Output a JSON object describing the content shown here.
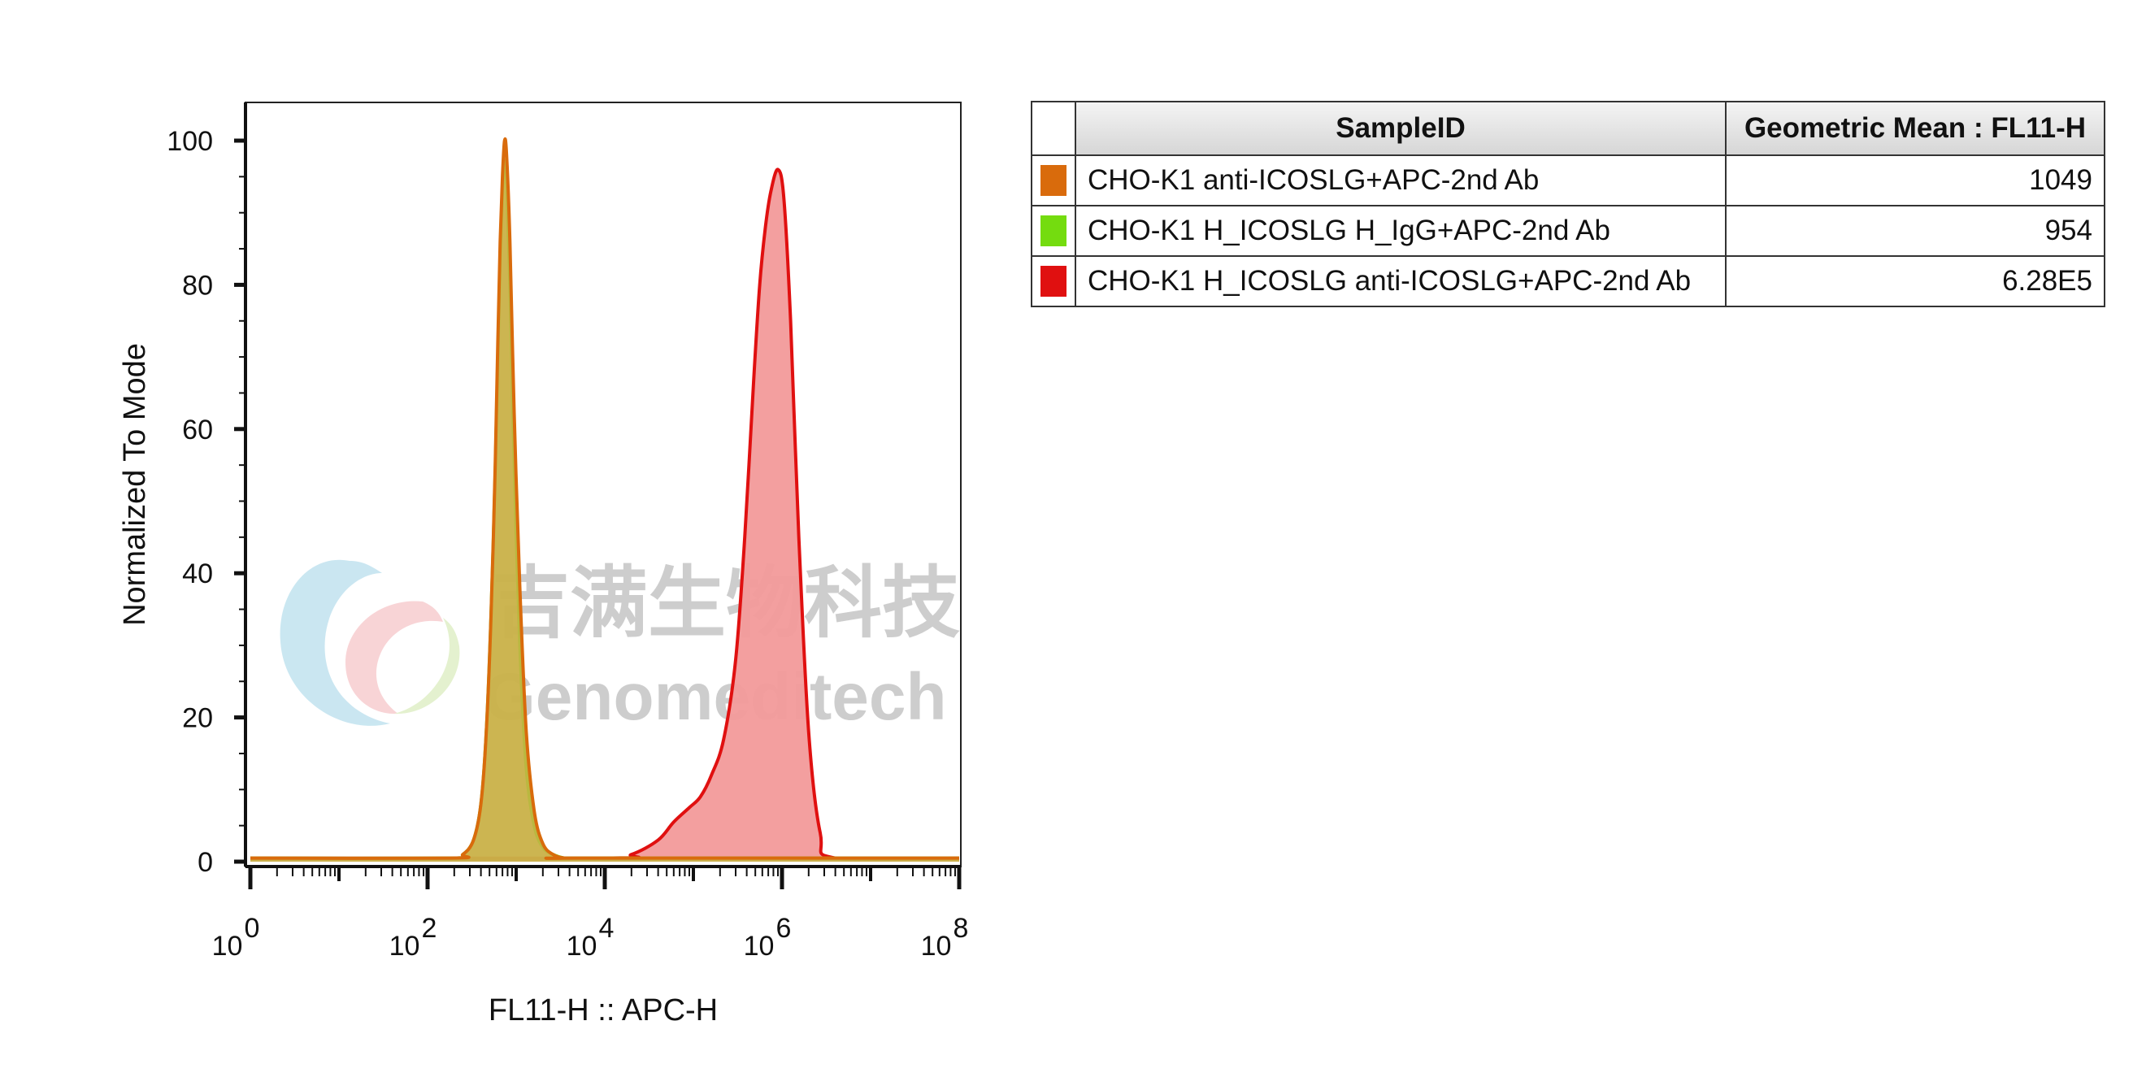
{
  "chart_data": {
    "type": "area",
    "xlabel": "FL11-H :: APC-H",
    "ylabel": "Normalized To Mode",
    "x_scale": "log10",
    "xlim": [
      1,
      100000000
    ],
    "ylim": [
      0,
      100
    ],
    "x_ticks": [
      {
        "base": "10",
        "exp": "0",
        "value": 1
      },
      {
        "base": "10",
        "exp": "2",
        "value": 100
      },
      {
        "base": "10",
        "exp": "4",
        "value": 10000
      },
      {
        "base": "10",
        "exp": "6",
        "value": 1000000
      },
      {
        "base": "10",
        "exp": "8",
        "value": 100000000
      }
    ],
    "y_ticks": [
      "0",
      "20",
      "40",
      "60",
      "80",
      "100"
    ],
    "series": [
      {
        "name": "CHO-K1 anti-ICOSLG+APC-2nd Ab",
        "color": "#d96b0c",
        "fill": "#c9b24a",
        "x": [
          1,
          180,
          250,
          330,
          400,
          460,
          520,
          580,
          620,
          660,
          700,
          740,
          780,
          850,
          950,
          1100,
          1300,
          1600,
          2000,
          2600,
          3500,
          5000,
          100000000
        ],
        "y": [
          0.5,
          0.5,
          1,
          3,
          8,
          18,
          34,
          55,
          72,
          86,
          95,
          100,
          98,
          86,
          62,
          38,
          18,
          7,
          2.5,
          1,
          0.5,
          0.5,
          0.5
        ]
      },
      {
        "name": "CHO-K1 H_ICOSLG H_IgG+APC-2nd Ab",
        "color": "#7fd11a",
        "fill": "#c9b24a",
        "x": [
          1,
          180,
          250,
          330,
          400,
          460,
          520,
          580,
          620,
          660,
          700,
          740,
          780,
          850,
          950,
          1100,
          1300,
          1600,
          2000,
          2600,
          3500,
          5000,
          100000000
        ],
        "y": [
          0.5,
          0.5,
          1,
          3,
          8,
          18,
          34,
          54,
          70,
          84,
          93,
          97,
          95,
          80,
          55,
          30,
          13,
          5,
          2,
          1,
          0.5,
          0.5,
          0.5
        ]
      },
      {
        "name": "CHO-K1 H_ICOSLG anti-ICOSLG+APC-2nd Ab",
        "color": "#e01010",
        "fill": "#f29a9a",
        "x": [
          1,
          10000,
          20000,
          40000,
          60000,
          90000,
          120000,
          160000,
          220000,
          300000,
          380000,
          480000,
          560000,
          650000,
          750000,
          900000,
          1050000,
          1250000,
          1550000,
          2000000,
          2700000,
          4000000,
          100000000
        ],
        "y": [
          0.5,
          0.5,
          1,
          3,
          5.5,
          7.5,
          9,
          12,
          17,
          28,
          45,
          67,
          80,
          88,
          93,
          96,
          92,
          75,
          45,
          18,
          4,
          0.5,
          0.5
        ]
      }
    ]
  },
  "legend_table": {
    "header": {
      "sample": "SampleID",
      "value": "Geometric Mean : FL11-H"
    },
    "rows": [
      {
        "color": "#d96b0c",
        "sample": "CHO-K1 anti-ICOSLG+APC-2nd Ab",
        "value": "1049"
      },
      {
        "color": "#74dc0f",
        "sample": "CHO-K1 H_ICOSLG H_IgG+APC-2nd Ab",
        "value": "954"
      },
      {
        "color": "#e01010",
        "sample": "CHO-K1 H_ICOSLG anti-ICOSLG+APC-2nd Ab",
        "value": "6.28E5"
      }
    ]
  },
  "watermark": {
    "chinese": "吉满生物科技",
    "english": "Genomeditech"
  }
}
